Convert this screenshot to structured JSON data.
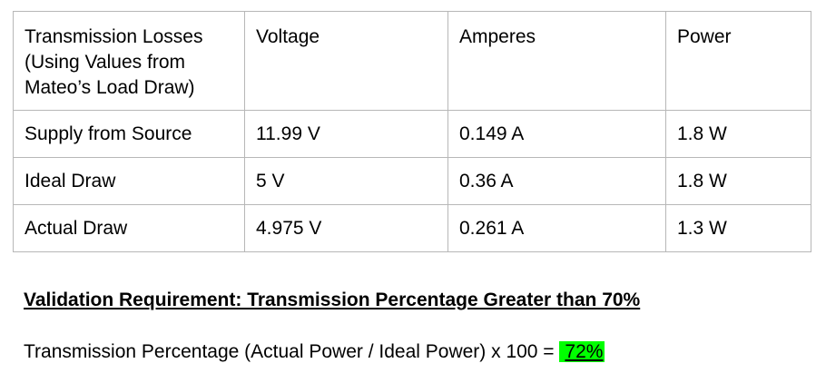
{
  "table": {
    "header": {
      "col1": "Transmission Losses (Using Values from Mateo’s Load Draw)",
      "col2": "Voltage",
      "col3": "Amperes",
      "col4": "Power"
    },
    "rows": [
      {
        "label": "Supply from Source",
        "voltage": "11.99 V",
        "amperes": "0.149 A",
        "power": "1.8 W"
      },
      {
        "label": "Ideal Draw",
        "voltage": "5 V",
        "amperes": "0.36 A",
        "power": "1.8 W"
      },
      {
        "label": "Actual Draw",
        "voltage": "4.975 V",
        "amperes": "0.261 A",
        "power": "1.3 W"
      }
    ]
  },
  "requirement": "Validation Requirement: Transmission Percentage Greater than 70%",
  "formula": {
    "text": "Transmission Percentage (Actual Power / Ideal Power) x 100 = ",
    "result": "72%"
  },
  "colors": {
    "border": "#b7b7b7",
    "highlight": "#00ff00"
  }
}
